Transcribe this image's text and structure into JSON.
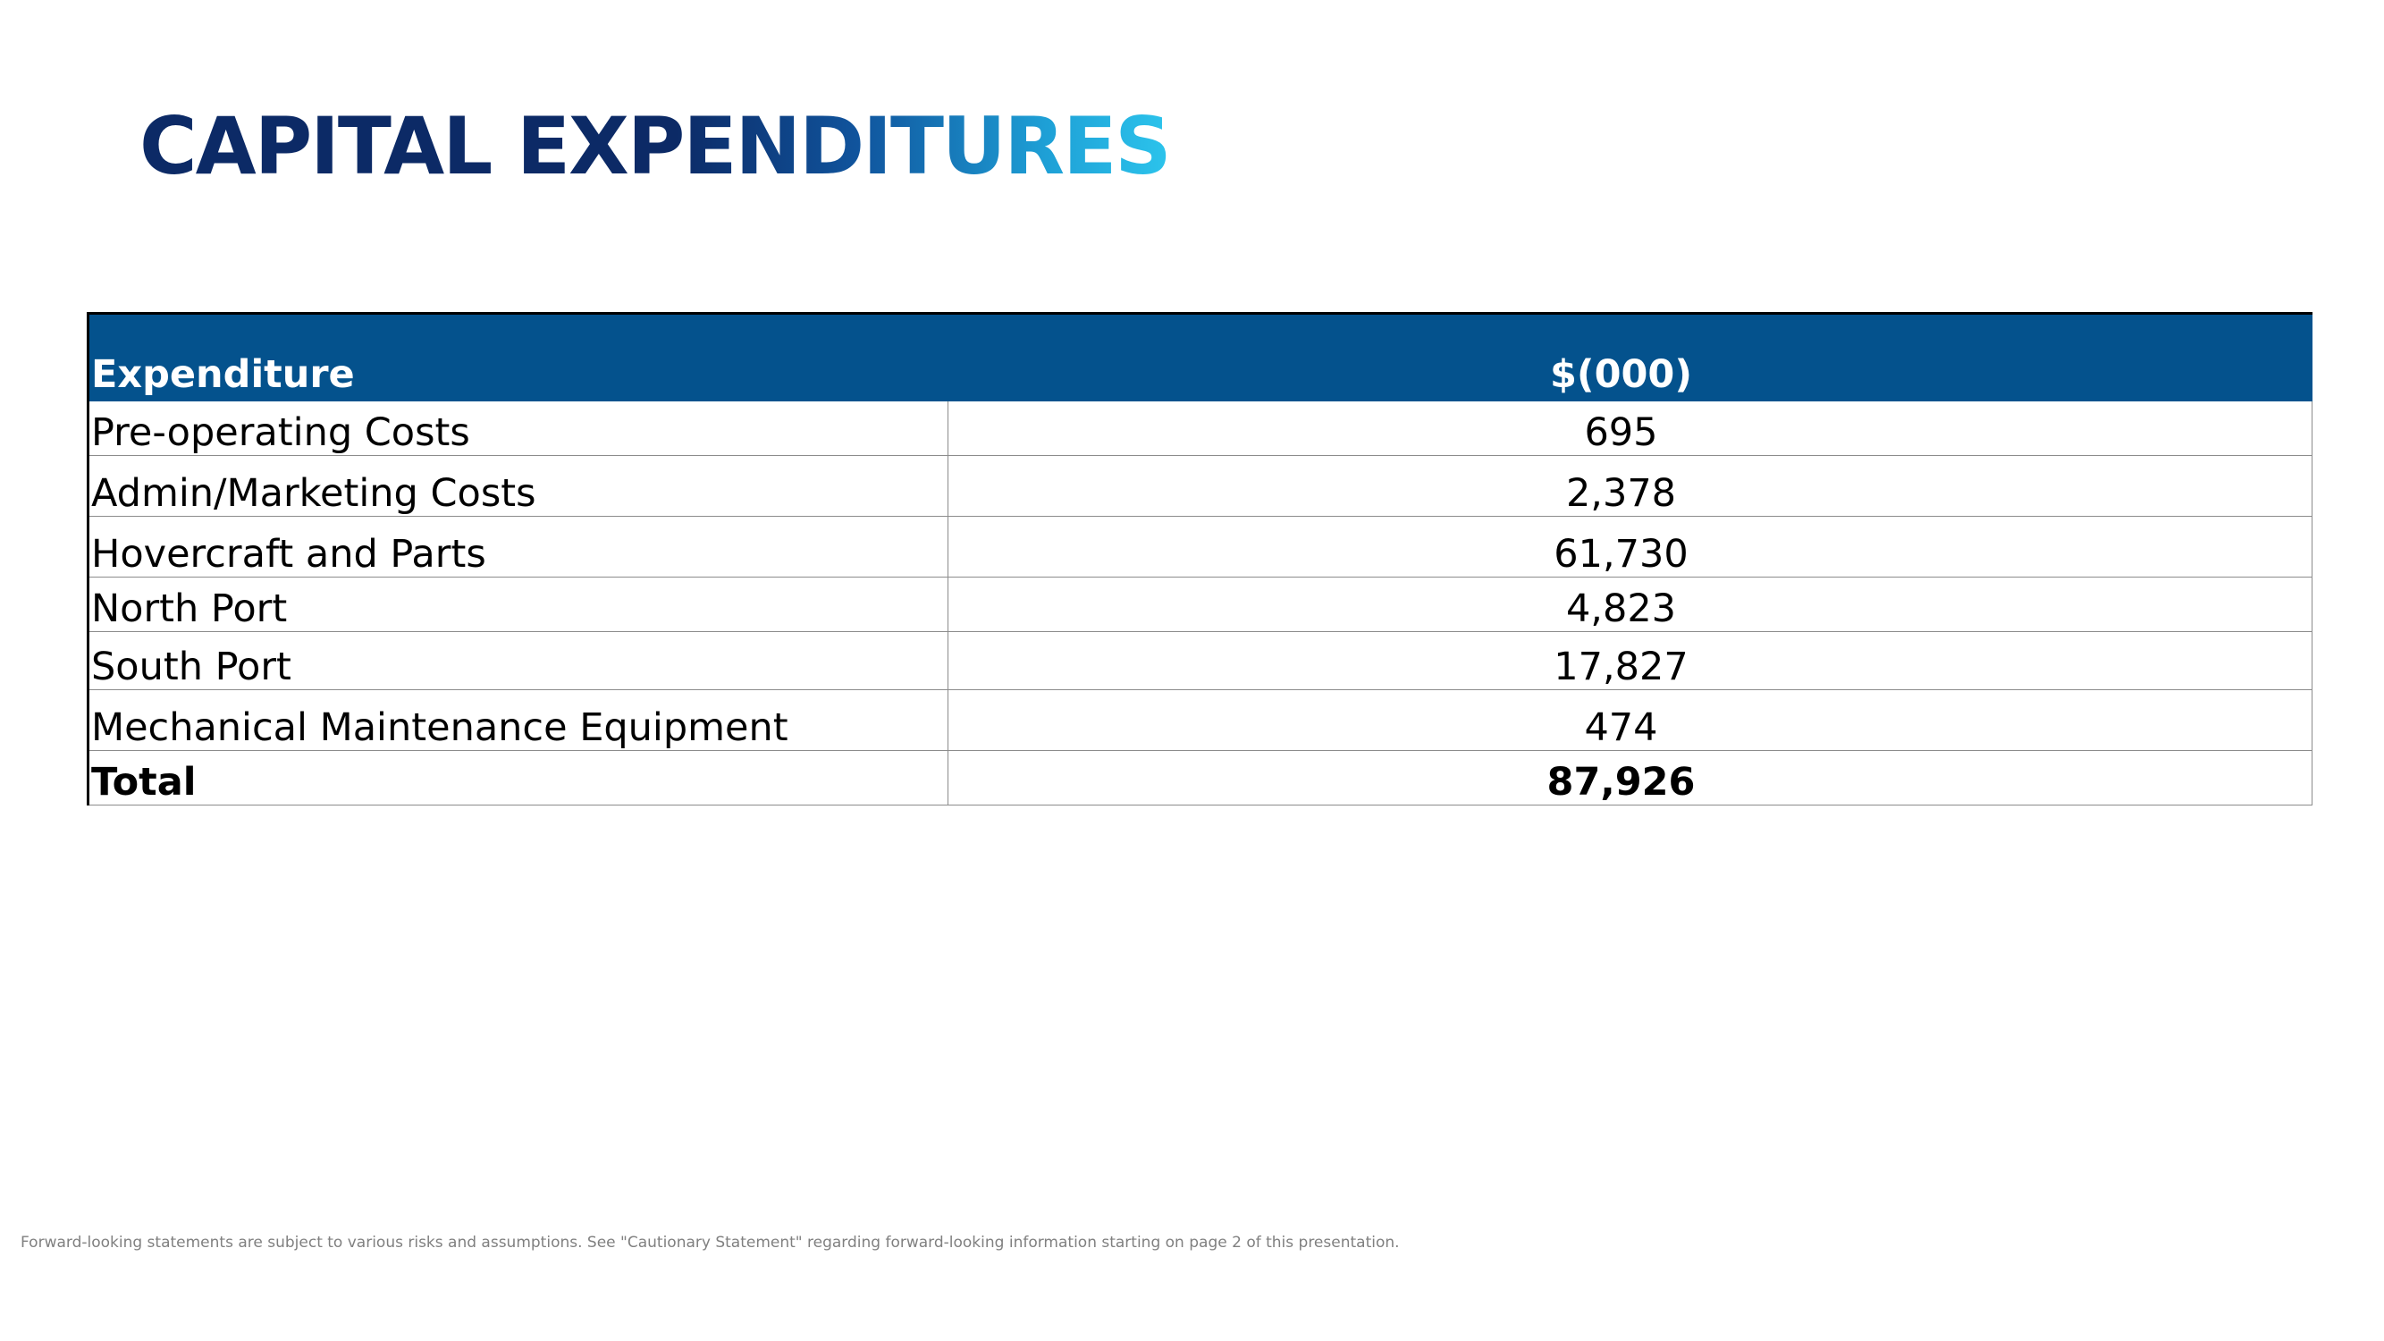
{
  "slide": {
    "title": "CAPITAL EXPENDITURES"
  },
  "table": {
    "headers": [
      "Expenditure",
      "$(000)"
    ],
    "rows": [
      {
        "label": "Pre-operating Costs",
        "value": "695"
      },
      {
        "label": "Admin/Marketing Costs",
        "value": "2,378"
      },
      {
        "label": "Hovercraft and Parts",
        "value": "61,730"
      },
      {
        "label": "North Port",
        "value": "4,823"
      },
      {
        "label": "South Port",
        "value": "17,827"
      },
      {
        "label": "Mechanical Maintenance Equipment",
        "value": "474"
      }
    ],
    "total": {
      "label": "Total",
      "value": "87,926"
    }
  },
  "footer": {
    "note": "Forward-looking statements are subject to various risks and assumptions. See \"Cautionary Statement\" regarding forward-looking information starting on page 2 of this presentation."
  },
  "colors": {
    "header_bg": "#04528d",
    "title_dark": "#0c2a66",
    "title_light": "#2cc4ec"
  }
}
